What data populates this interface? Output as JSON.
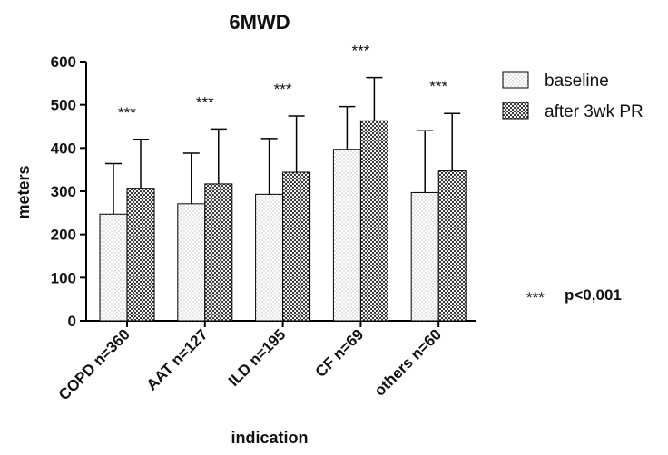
{
  "chart_data": {
    "type": "bar",
    "title": "6MWD",
    "xlabel": "indication",
    "ylabel": "meters",
    "ylim": [
      0,
      600
    ],
    "yticks": [
      0,
      100,
      200,
      300,
      400,
      500,
      600
    ],
    "categories": [
      "COPD n=360",
      "AAT n=127",
      "ILD n=195",
      "CF n=69",
      "others n=60"
    ],
    "series": [
      {
        "name": "baseline",
        "pattern": "dots",
        "values": [
          247,
          271,
          293,
          397,
          297
        ],
        "error_upper": [
          364,
          388,
          422,
          496,
          440
        ]
      },
      {
        "name": "after 3wk PR",
        "pattern": "checker",
        "values": [
          307,
          317,
          344,
          463,
          347
        ],
        "error_upper": [
          420,
          444,
          474,
          563,
          480
        ]
      }
    ],
    "significance": [
      "***",
      "***",
      "***",
      "***",
      "***"
    ],
    "legend_position": "top-right",
    "grid": false,
    "annotation": {
      "symbol": "***",
      "text": "p<0,001"
    }
  }
}
